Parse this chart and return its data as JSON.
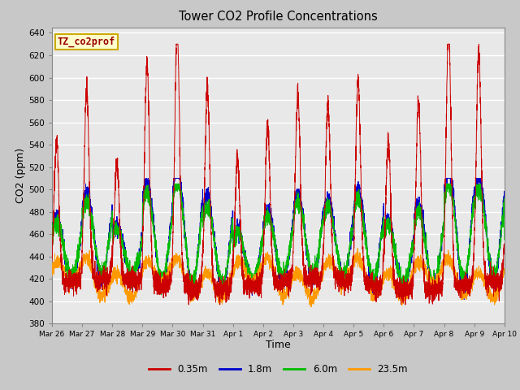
{
  "title": "Tower CO2 Profile Concentrations",
  "xlabel": "Time",
  "ylabel": "CO2 (ppm)",
  "ylim": [
    380,
    645
  ],
  "yticks": [
    380,
    400,
    420,
    440,
    460,
    480,
    500,
    520,
    540,
    560,
    580,
    600,
    620,
    640
  ],
  "series_labels": [
    "0.35m",
    "1.8m",
    "6.0m",
    "23.5m"
  ],
  "series_colors": [
    "#cc0000",
    "#0000cc",
    "#00bb00",
    "#ff9900"
  ],
  "inset_label": "TZ_co2prof",
  "inset_bg": "#ffffcc",
  "inset_edge": "#ccaa00",
  "x_tick_labels": [
    "Mar 26",
    "Mar 27",
    "Mar 28",
    "Mar 29",
    "Mar 30",
    "Mar 31",
    "Apr 1",
    "Apr 2",
    "Apr 3",
    "Apr 4",
    "Apr 5",
    "Apr 6",
    "Apr 7",
    "Apr 8",
    "Apr 9",
    "Apr 10"
  ],
  "fig_bg": "#c8c8c8",
  "plot_bg": "#e8e8e8"
}
